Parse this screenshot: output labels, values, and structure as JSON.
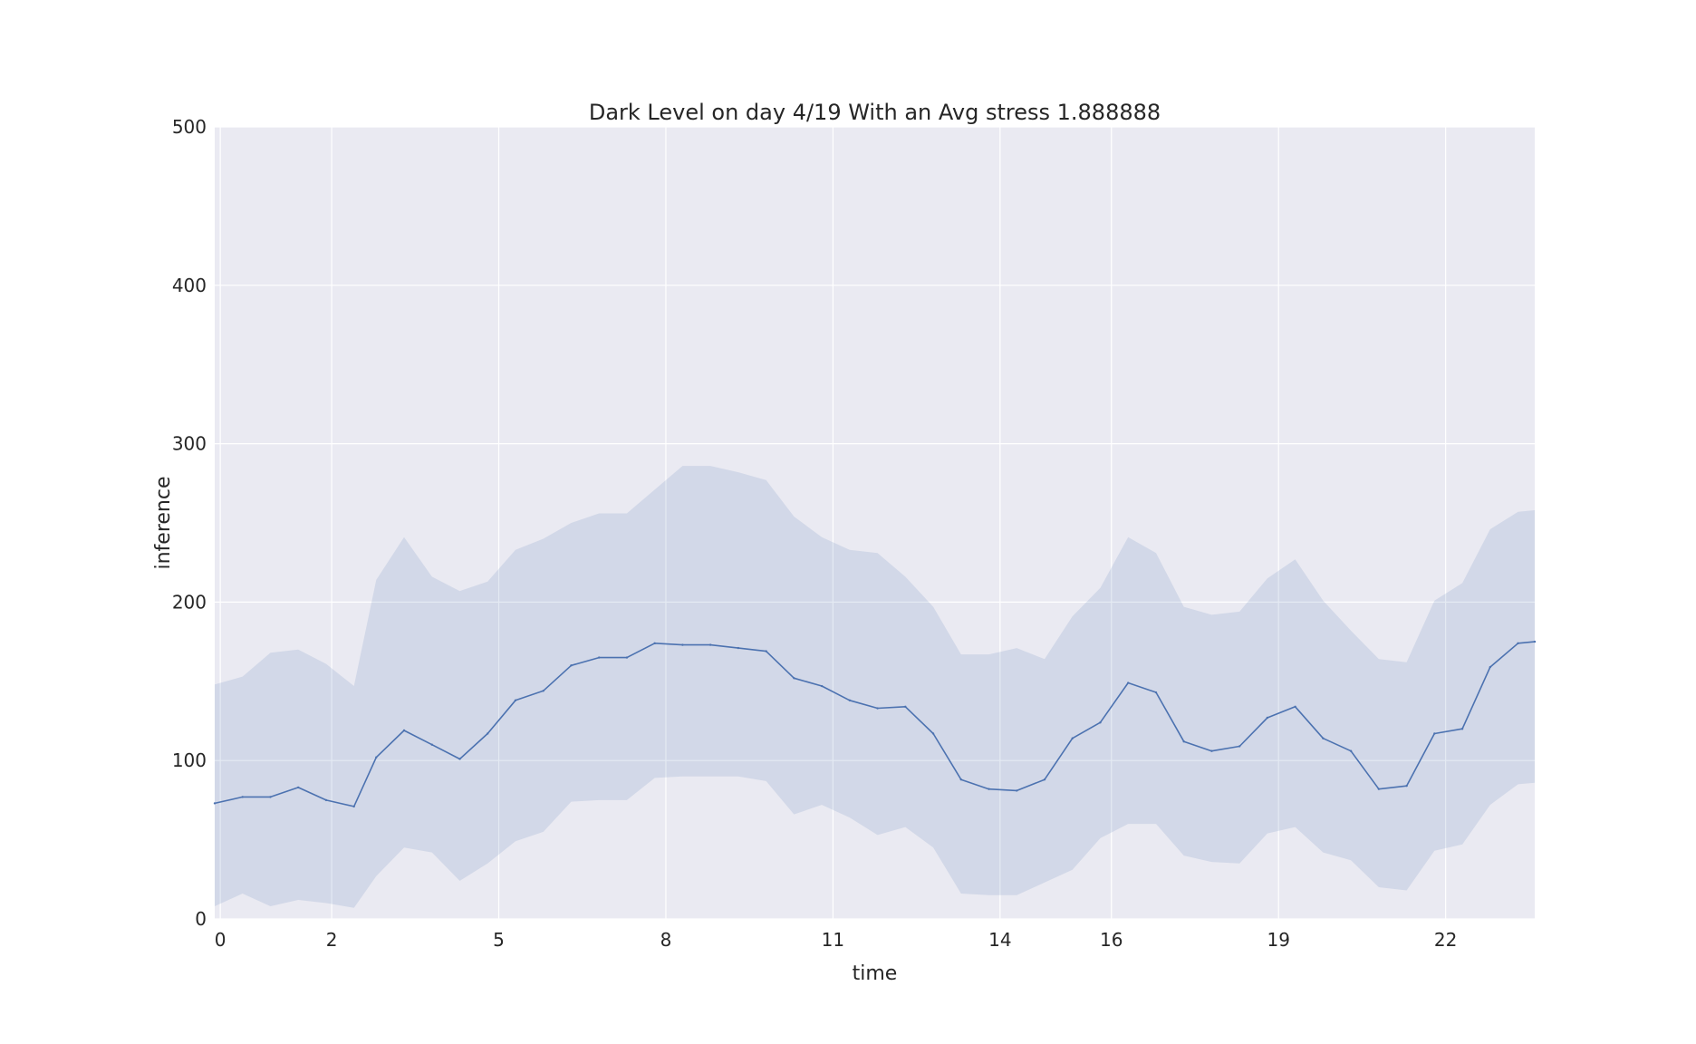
{
  "chart_data": {
    "type": "line",
    "title": "Dark Level on day 4/19 With an Avg stress 1.888888",
    "xlabel": "time",
    "ylabel": "inference",
    "xlim": [
      -0.1,
      23.6
    ],
    "ylim": [
      0,
      500
    ],
    "xticks": [
      0,
      2,
      5,
      8,
      11,
      14,
      16,
      19,
      22
    ],
    "xtick_labels": [
      "0",
      "2",
      "5",
      "8",
      "11",
      "14",
      "16",
      "19",
      "22"
    ],
    "yticks": [
      0,
      100,
      200,
      300,
      400,
      500
    ],
    "ytick_labels": [
      "0",
      "100",
      "200",
      "300",
      "400",
      "500"
    ],
    "grid": true,
    "legend": "none",
    "colors": {
      "background": "#eaeaf2",
      "grid": "#ffffff",
      "line": "#4c72b0",
      "band": "#4c72b0"
    },
    "series": [
      {
        "x": [
          -0.1,
          0.4,
          0.9,
          1.4,
          1.9,
          2.4,
          2.8,
          3.3,
          3.8,
          4.3,
          4.8,
          5.3,
          5.8,
          6.3,
          6.8,
          7.3,
          7.8,
          8.3,
          8.8,
          9.3,
          9.8,
          10.3,
          10.8,
          11.3,
          11.8,
          12.3,
          12.8,
          13.3,
          13.8,
          14.3,
          14.8,
          15.3,
          15.8,
          16.3,
          16.8,
          17.3,
          17.8,
          18.3,
          18.8,
          19.3,
          19.8,
          20.3,
          20.8,
          21.3,
          21.8,
          22.3,
          22.8,
          23.3,
          23.6
        ],
        "mean": [
          73,
          77,
          77,
          83,
          75,
          71,
          102,
          119,
          110,
          101,
          117,
          138,
          144,
          160,
          165,
          165,
          174,
          173,
          173,
          171,
          169,
          152,
          147,
          138,
          133,
          134,
          117,
          88,
          82,
          81,
          88,
          114,
          124,
          149,
          143,
          112,
          106,
          109,
          127,
          134,
          114,
          106,
          82,
          84,
          117,
          120,
          159,
          174,
          175
        ],
        "upper": [
          148,
          153,
          168,
          170,
          161,
          147,
          214,
          241,
          216,
          207,
          213,
          233,
          240,
          250,
          256,
          256,
          271,
          286,
          286,
          282,
          277,
          254,
          241,
          233,
          231,
          216,
          197,
          167,
          167,
          171,
          164,
          191,
          209,
          241,
          231,
          197,
          192,
          194,
          215,
          227,
          201,
          182,
          164,
          162,
          201,
          212,
          246,
          257,
          258
        ],
        "lower": [
          8,
          16,
          8,
          12,
          10,
          7,
          27,
          45,
          42,
          24,
          35,
          49,
          55,
          74,
          75,
          75,
          89,
          90,
          90,
          90,
          87,
          66,
          72,
          64,
          53,
          58,
          45,
          16,
          15,
          15,
          23,
          31,
          51,
          60,
          60,
          40,
          36,
          35,
          54,
          58,
          42,
          37,
          20,
          18,
          43,
          47,
          72,
          85,
          86
        ]
      }
    ]
  }
}
